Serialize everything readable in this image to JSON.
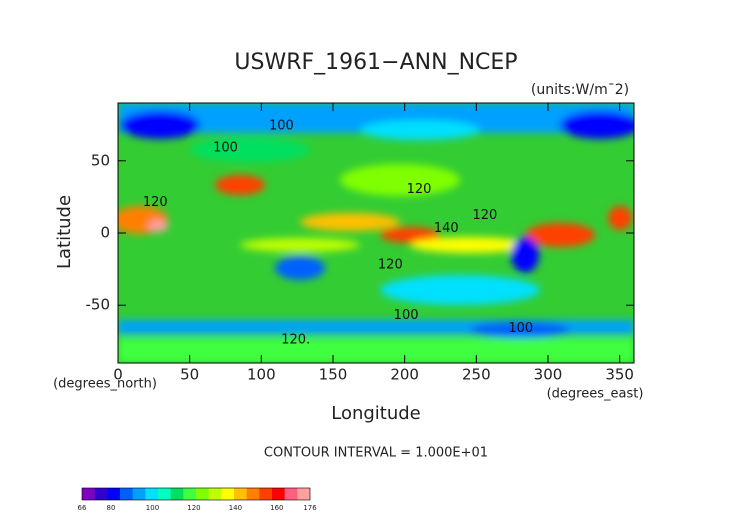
{
  "chart_data": {
    "type": "contour",
    "title": "USWRF_1961−ANN_NCEP",
    "units": "(units:W/m¯2)",
    "xlabel": "Longitude",
    "ylabel": "Latitude",
    "xunit": "(degrees_east)",
    "yunit": "(degrees_north)",
    "footer": "CONTOUR INTERVAL = 1.000E+01",
    "xlim": [
      0,
      360
    ],
    "xticks": [
      0,
      50,
      100,
      150,
      200,
      250,
      300,
      350
    ],
    "ylim": [
      -90,
      90
    ],
    "yticks": [
      -50,
      0,
      50
    ],
    "annotations": [
      {
        "text": "100",
        "x": 114,
        "y": 74
      },
      {
        "text": "100",
        "x": 75,
        "y": 59
      },
      {
        "text": "120",
        "x": 26,
        "y": 21
      },
      {
        "text": "120",
        "x": 210,
        "y": 30
      },
      {
        "text": "120",
        "x": 256,
        "y": 12
      },
      {
        "text": "140",
        "x": 229,
        "y": 3
      },
      {
        "text": "120",
        "x": 190,
        "y": -22
      },
      {
        "text": "100",
        "x": 201,
        "y": -57
      },
      {
        "text": "100",
        "x": 281,
        "y": -66
      },
      {
        "text": "120.",
        "x": 124,
        "y": -74
      }
    ],
    "colorbar": {
      "lim": [
        66,
        176
      ],
      "ticks": [
        66,
        80,
        100,
        120,
        140,
        160,
        176
      ],
      "colors": [
        "#8000c0",
        "#3000d0",
        "#0000ff",
        "#0060ff",
        "#00a0ff",
        "#00e0ff",
        "#00ffc0",
        "#00e060",
        "#40ff40",
        "#80ff00",
        "#c0ff00",
        "#ffff00",
        "#ffc000",
        "#ff8000",
        "#ff4000",
        "#ff0000",
        "#ff6080",
        "#ffa0a0"
      ]
    }
  }
}
